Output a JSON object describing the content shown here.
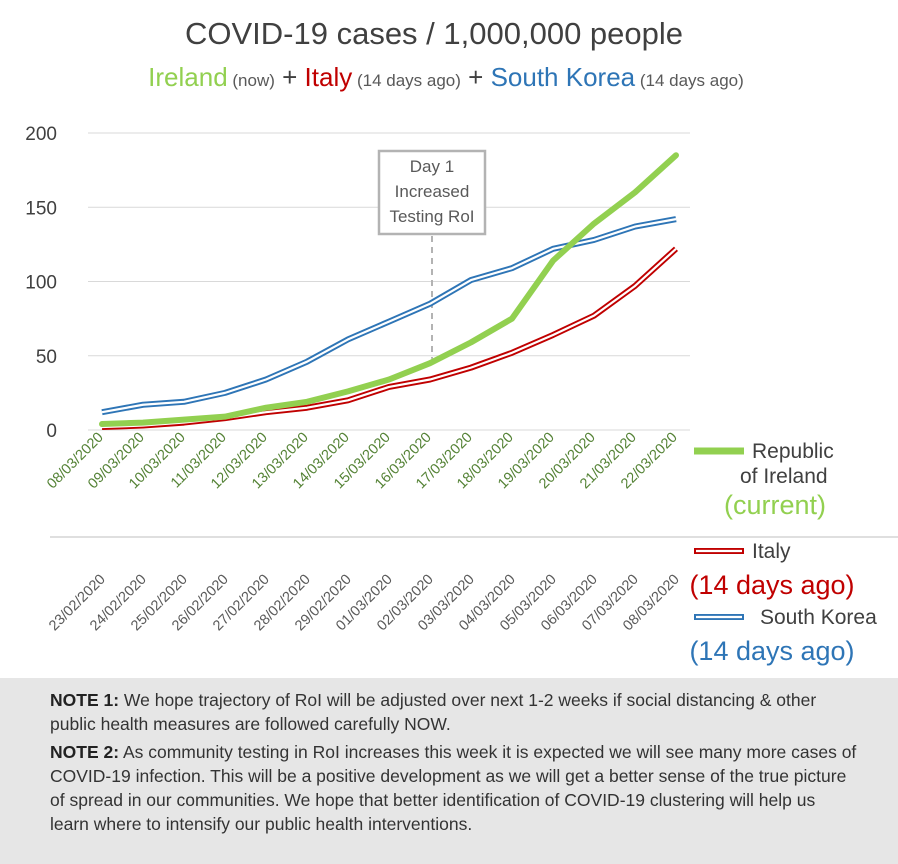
{
  "chart_data": {
    "type": "line",
    "title": "COVID-19 cases / 1,000,000 people",
    "subtitle": [
      {
        "text": "Ireland",
        "color": "#92d050"
      },
      {
        "text": " (now)",
        "color": "#595959"
      },
      {
        "text": "   +   ",
        "color": "#404040"
      },
      {
        "text": "Italy",
        "color": "#c00000"
      },
      {
        "text": " (14 days ago)",
        "color": "#595959"
      },
      {
        "text": "   +   ",
        "color": "#404040"
      },
      {
        "text": "South Korea",
        "color": "#2e75b6"
      },
      {
        "text": " (14 days ago)",
        "color": "#595959"
      }
    ],
    "ylim": [
      0,
      200
    ],
    "yticks": [
      "0",
      "50",
      "100",
      "150",
      "200"
    ],
    "grid": true,
    "x_primary": [
      "08/03/2020",
      "09/03/2020",
      "10/03/2020",
      "11/03/2020",
      "12/03/2020",
      "13/03/2020",
      "14/03/2020",
      "15/03/2020",
      "16/03/2020",
      "17/03/2020",
      "18/03/2020",
      "19/03/2020",
      "20/03/2020",
      "21/03/2020",
      "22/03/2020"
    ],
    "x_secondary": [
      "23/02/2020",
      "24/02/2020",
      "25/02/2020",
      "26/02/2020",
      "27/02/2020",
      "28/02/2020",
      "29/02/2020",
      "01/03/2020",
      "02/03/2020",
      "03/03/2020",
      "04/03/2020",
      "05/03/2020",
      "06/03/2020",
      "07/03/2020",
      "08/03/2020"
    ],
    "series": [
      {
        "name": "South Korea",
        "label_lines": [
          "South Korea"
        ],
        "sublabel": "(14 days ago)",
        "style": "double",
        "color": "#2e75b6",
        "values": [
          12,
          17,
          19,
          25,
          34,
          46,
          61,
          73,
          85,
          101,
          109,
          122,
          128,
          137,
          142
        ]
      },
      {
        "name": "Italy",
        "label_lines": [
          "Italy"
        ],
        "sublabel": "(14 days ago)",
        "style": "double",
        "color": "#c00000",
        "values": [
          2,
          3,
          5,
          8,
          12,
          15,
          20,
          29,
          34,
          42,
          52,
          64,
          77,
          97,
          122
        ]
      },
      {
        "name": "Republic of Ireland",
        "label_lines": [
          "Republic",
          "of Ireland"
        ],
        "sublabel": "(current)",
        "style": "solid",
        "color": "#92d050",
        "values": [
          4,
          5,
          7,
          9,
          15,
          19,
          26,
          34,
          45,
          59,
          75,
          114,
          139,
          160,
          185
        ]
      }
    ],
    "annotation": {
      "lines": [
        "Day 1",
        "Increased",
        "Testing RoI"
      ],
      "x_index": 8
    }
  },
  "notes": [
    {
      "label": "NOTE 1:",
      "text": " We hope trajectory of RoI will be adjusted over next 1-2 weeks if social distancing & other public health measures are followed carefully NOW."
    },
    {
      "label": "NOTE 2:",
      "text": " As community testing in RoI increases this week it is expected we will see many more cases of COVID-19 infection. This will be a positive development as we will get a better sense of the true picture of spread in our communities. We hope that better identification of COVID-19 clustering will help us learn where to intensify our public health interventions."
    }
  ]
}
